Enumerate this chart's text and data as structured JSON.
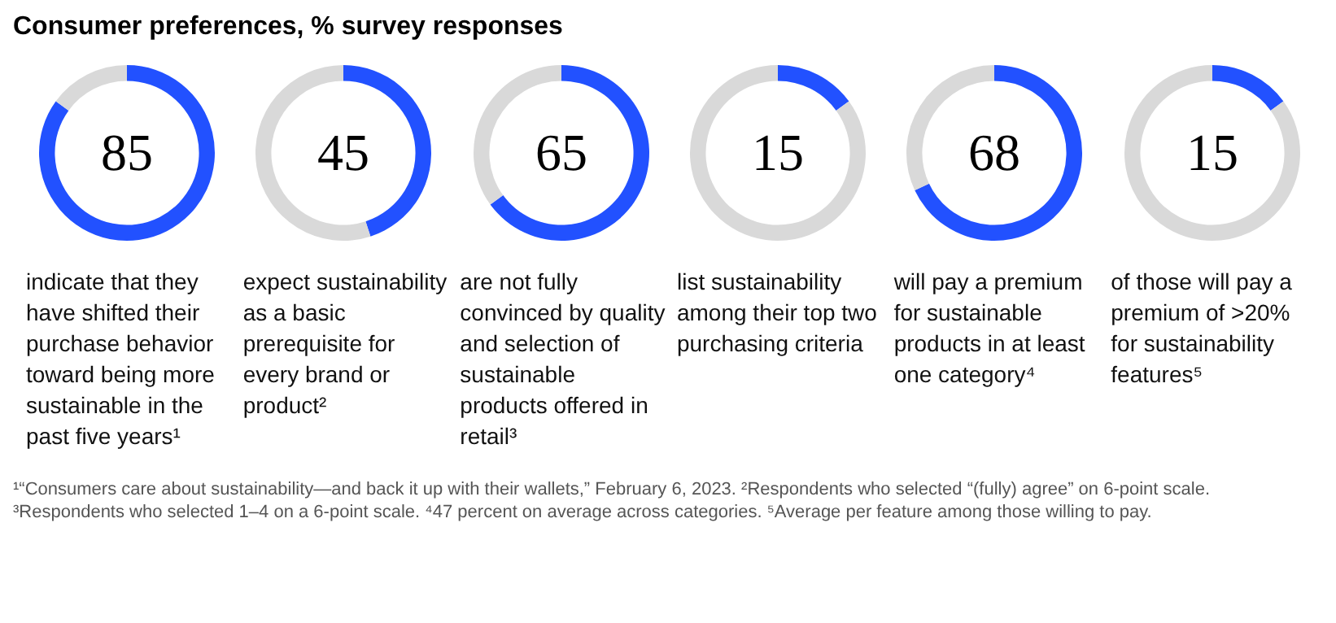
{
  "chart_data": [
    {
      "type": "donut",
      "title": "Consumer preferences, % survey responses",
      "categories": [
        null,
        null
      ],
      "values": [
        85,
        15
      ],
      "colors": [
        "#2251ff",
        "#d9d9d9"
      ],
      "value_labels": [
        "85",
        null
      ],
      "legend": false,
      "annotations": [
        "indicate that they have shifted their purchase behavior toward being more sustainable in the past five years¹",
        "¹“Consumers care about sustainability—and back it up with their wallets,” February 6, 2023. ²Respondents who selected “(fully) agree” on 6-point scale. ³Respondents who selected 1–4 on a 6-point scale. ⁴47 percent on average across categories. ⁵Average per feature among those willing to pay."
      ]
    },
    {
      "type": "donut",
      "categories": [
        null,
        null
      ],
      "values": [
        45,
        55
      ],
      "colors": [
        "#2251ff",
        "#d9d9d9"
      ],
      "value_labels": [
        "45",
        null
      ],
      "legend": false,
      "annotations": [
        "expect sustainability as a basic prerequisite for every brand or product²"
      ]
    },
    {
      "type": "donut",
      "categories": [
        null,
        null
      ],
      "values": [
        65,
        35
      ],
      "colors": [
        "#2251ff",
        "#d9d9d9"
      ],
      "value_labels": [
        "65",
        null
      ],
      "legend": false,
      "annotations": [
        "are not fully convinced by quality and selection of sustainable products offered in retail³"
      ]
    },
    {
      "type": "donut",
      "categories": [
        null,
        null
      ],
      "values": [
        15,
        85
      ],
      "colors": [
        "#2251ff",
        "#d9d9d9"
      ],
      "value_labels": [
        "15",
        null
      ],
      "legend": false,
      "annotations": [
        "list sustainability among their top two purchasing criteria"
      ]
    },
    {
      "type": "donut",
      "categories": [
        null,
        null
      ],
      "values": [
        68,
        32
      ],
      "colors": [
        "#2251ff",
        "#d9d9d9"
      ],
      "value_labels": [
        "68",
        null
      ],
      "legend": false,
      "annotations": [
        "will pay a premium for sustainable products in at least one category⁴"
      ]
    },
    {
      "type": "donut",
      "categories": [
        null,
        null
      ],
      "values": [
        15,
        85
      ],
      "colors": [
        "#2251ff",
        "#d9d9d9"
      ],
      "value_labels": [
        "15",
        null
      ],
      "legend": false,
      "annotations": [
        "of those will pay a premium of >20% for sustainability features⁵"
      ]
    }
  ]
}
